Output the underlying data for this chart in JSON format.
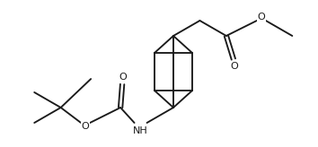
{
  "background_color": "#ffffff",
  "line_color": "#1a1a1a",
  "line_width": 1.35,
  "font_size": 8.0,
  "fig_width": 3.54,
  "fig_height": 1.64,
  "dpi": 100,
  "xlim": [
    0,
    354
  ],
  "ylim": [
    0,
    164
  ]
}
